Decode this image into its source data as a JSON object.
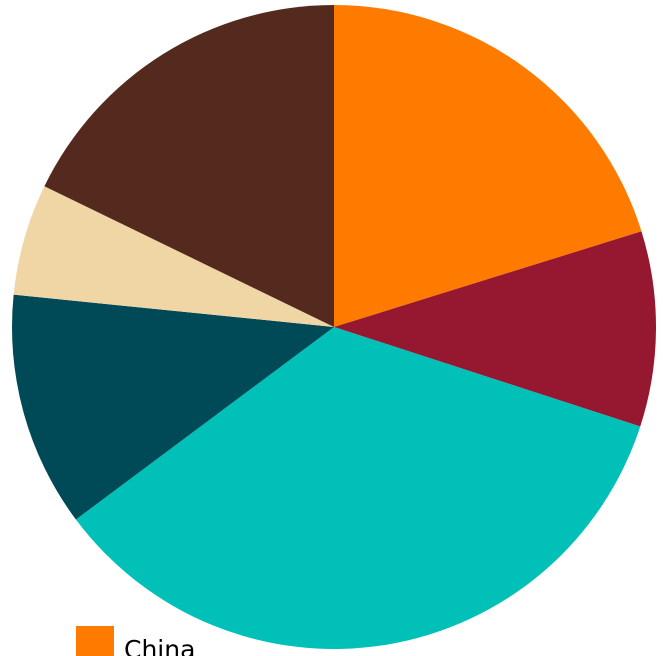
{
  "chart_data": {
    "type": "pie",
    "start_angle_deg": 0,
    "direction": "clockwise",
    "slices": [
      {
        "label": "China",
        "value": 20.2,
        "color": "#FF7B00"
      },
      {
        "label": "",
        "value": 9.8,
        "color": "#961830"
      },
      {
        "label": "",
        "value": 34.8,
        "color": "#00C0B8"
      },
      {
        "label": "",
        "value": 11.8,
        "color": "#004A57"
      },
      {
        "label": "",
        "value": 5.6,
        "color": "#F0D5A5"
      },
      {
        "label": "",
        "value": 17.8,
        "color": "#542A1E"
      }
    ],
    "legend": {
      "placement": "bottom-left",
      "entries": [
        {
          "label": "China",
          "color": "#FF7B00"
        }
      ]
    }
  }
}
